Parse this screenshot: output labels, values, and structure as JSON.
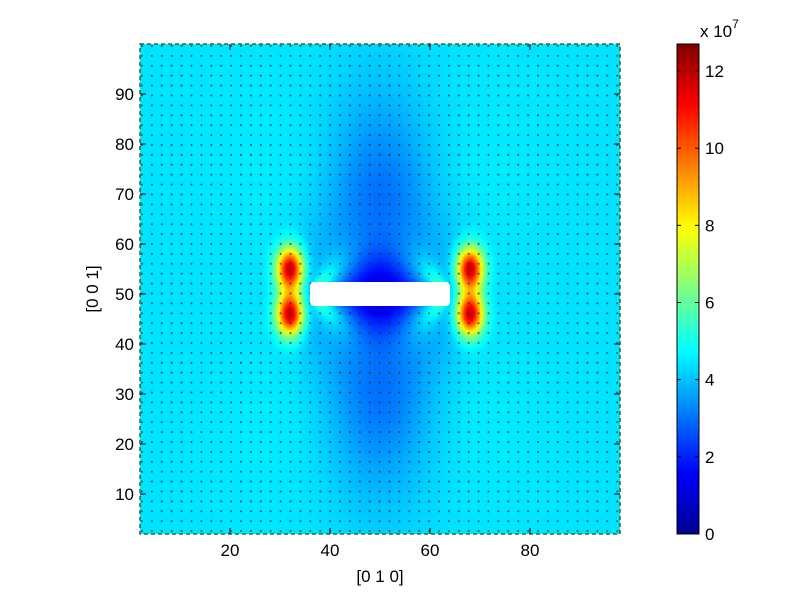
{
  "chart_data": {
    "type": "heatmap",
    "title": "",
    "xlabel": "[0 1 0]",
    "ylabel": "[0 0 1]",
    "xlim": [
      2,
      98
    ],
    "ylim": [
      2,
      100
    ],
    "xticks": [
      20,
      40,
      60,
      80
    ],
    "yticks": [
      10,
      20,
      30,
      40,
      50,
      60,
      70,
      80,
      90
    ],
    "grid": false,
    "colormap": "jet",
    "colorbar": {
      "range": [
        0,
        12.7
      ],
      "ticks": [
        0,
        2,
        4,
        6,
        8,
        10,
        12
      ],
      "multiplier_label": "x 10",
      "multiplier_exponent": "7"
    },
    "field": {
      "background_value": 4.4,
      "hole": {
        "x": [
          36,
          64
        ],
        "y": [
          47.6,
          52.4
        ],
        "color": "#ffffff"
      },
      "hotspots": [
        {
          "x": 32,
          "y": 55,
          "value": 12
        },
        {
          "x": 32,
          "y": 46,
          "value": 12
        },
        {
          "x": 68,
          "y": 55,
          "value": 12
        },
        {
          "x": 68,
          "y": 46,
          "value": 12
        }
      ]
    }
  }
}
